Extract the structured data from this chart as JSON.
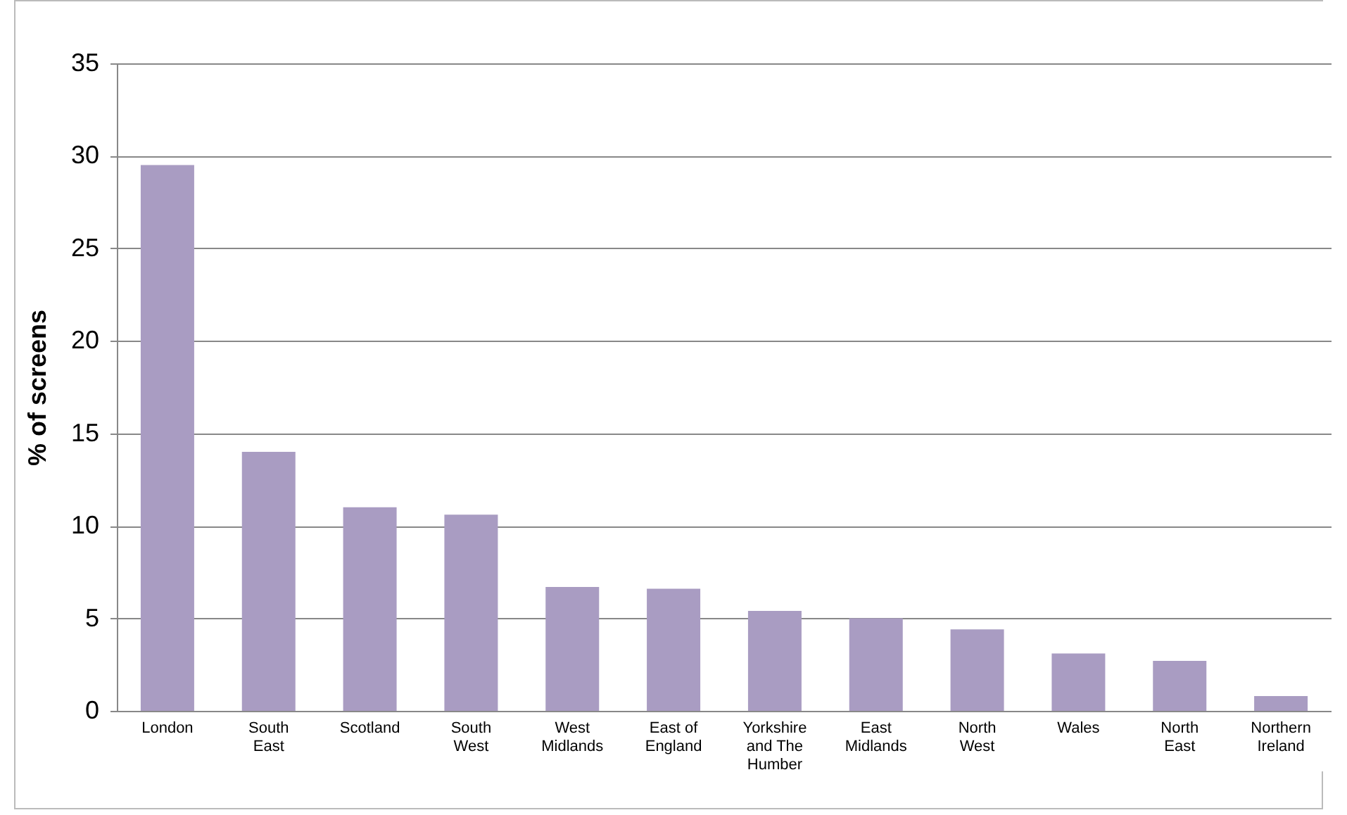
{
  "chart_data": {
    "type": "bar",
    "ylabel": "% of screens",
    "categories": [
      "London",
      "South East",
      "Scotland",
      "South West",
      "West Midlands",
      "East of England",
      "Yorkshire and The Humber",
      "East Midlands",
      "North West",
      "Wales",
      "North East",
      "Northern Ireland"
    ],
    "values": [
      29.5,
      14.0,
      11.0,
      10.6,
      6.7,
      6.6,
      5.4,
      5.0,
      4.4,
      3.1,
      2.7,
      0.8
    ],
    "color": "#a99cc2",
    "ylim": [
      0,
      35
    ],
    "yticks": [
      0,
      5,
      10,
      15,
      20,
      25,
      30,
      35
    ],
    "grid": "y"
  }
}
